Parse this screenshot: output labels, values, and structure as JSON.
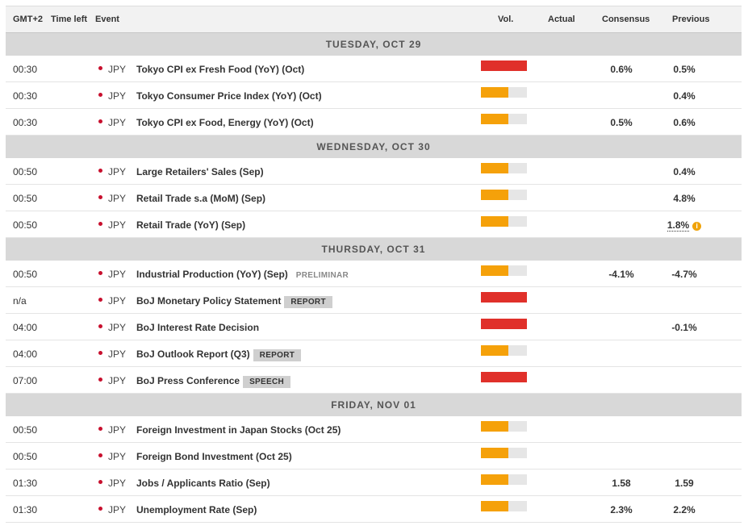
{
  "header": {
    "tz": "GMT+2",
    "time_left": "Time left",
    "event": "Event",
    "vol": "Vol.",
    "actual": "Actual",
    "consensus": "Consensus",
    "previous": "Previous"
  },
  "colors": {
    "high": "#e0302a",
    "medium": "#f5a10a"
  },
  "groups": [
    {
      "day": "TUESDAY, OCT 29",
      "rows": [
        {
          "time": "00:30",
          "currency": "JPY",
          "event": "Tokyo CPI ex Fresh Food (YoY) (Oct)",
          "tag": "",
          "vol": "high",
          "actual": "",
          "consensus": "0.6%",
          "previous": "0.5%",
          "revised": false
        },
        {
          "time": "00:30",
          "currency": "JPY",
          "event": "Tokyo Consumer Price Index (YoY) (Oct)",
          "tag": "",
          "vol": "medium",
          "actual": "",
          "consensus": "",
          "previous": "0.4%",
          "revised": false
        },
        {
          "time": "00:30",
          "currency": "JPY",
          "event": "Tokyo CPI ex Food, Energy (YoY) (Oct)",
          "tag": "",
          "vol": "medium",
          "actual": "",
          "consensus": "0.5%",
          "previous": "0.6%",
          "revised": false
        }
      ]
    },
    {
      "day": "WEDNESDAY, OCT 30",
      "rows": [
        {
          "time": "00:50",
          "currency": "JPY",
          "event": "Large Retailers' Sales (Sep)",
          "tag": "",
          "vol": "medium",
          "actual": "",
          "consensus": "",
          "previous": "0.4%",
          "revised": false
        },
        {
          "time": "00:50",
          "currency": "JPY",
          "event": "Retail Trade s.a (MoM) (Sep)",
          "tag": "",
          "vol": "medium",
          "actual": "",
          "consensus": "",
          "previous": "4.8%",
          "revised": false
        },
        {
          "time": "00:50",
          "currency": "JPY",
          "event": "Retail Trade (YoY) (Sep)",
          "tag": "",
          "vol": "medium",
          "actual": "",
          "consensus": "",
          "previous": "1.8%",
          "revised": true
        }
      ]
    },
    {
      "day": "THURSDAY, OCT 31",
      "rows": [
        {
          "time": "00:50",
          "currency": "JPY",
          "event": "Industrial Production (YoY) (Sep)",
          "tag": "PRELIMINAR",
          "tag_style": "plain",
          "vol": "medium",
          "actual": "",
          "consensus": "-4.1%",
          "previous": "-4.7%",
          "revised": false
        },
        {
          "time": "n/a",
          "currency": "JPY",
          "event": "BoJ Monetary Policy Statement",
          "tag": "REPORT",
          "vol": "high",
          "actual": "",
          "consensus": "",
          "previous": "",
          "revised": false
        },
        {
          "time": "04:00",
          "currency": "JPY",
          "event": "BoJ Interest Rate Decision",
          "tag": "",
          "vol": "high",
          "actual": "",
          "consensus": "",
          "previous": "-0.1%",
          "revised": false
        },
        {
          "time": "04:00",
          "currency": "JPY",
          "event": "BoJ Outlook Report (Q3)",
          "tag": "REPORT",
          "vol": "medium",
          "actual": "",
          "consensus": "",
          "previous": "",
          "revised": false
        },
        {
          "time": "07:00",
          "currency": "JPY",
          "event": "BoJ Press Conference",
          "tag": "SPEECH",
          "vol": "high",
          "actual": "",
          "consensus": "",
          "previous": "",
          "revised": false
        }
      ]
    },
    {
      "day": "FRIDAY, NOV 01",
      "rows": [
        {
          "time": "00:50",
          "currency": "JPY",
          "event": "Foreign Investment in Japan Stocks (Oct 25)",
          "tag": "",
          "vol": "medium",
          "actual": "",
          "consensus": "",
          "previous": "",
          "revised": false
        },
        {
          "time": "00:50",
          "currency": "JPY",
          "event": "Foreign Bond Investment (Oct 25)",
          "tag": "",
          "vol": "medium",
          "actual": "",
          "consensus": "",
          "previous": "",
          "revised": false
        },
        {
          "time": "01:30",
          "currency": "JPY",
          "event": "Jobs / Applicants Ratio (Sep)",
          "tag": "",
          "vol": "medium",
          "actual": "",
          "consensus": "1.58",
          "previous": "1.59",
          "revised": false
        },
        {
          "time": "01:30",
          "currency": "JPY",
          "event": "Unemployment Rate (Sep)",
          "tag": "",
          "vol": "medium",
          "actual": "",
          "consensus": "2.3%",
          "previous": "2.2%",
          "revised": false
        }
      ]
    }
  ]
}
